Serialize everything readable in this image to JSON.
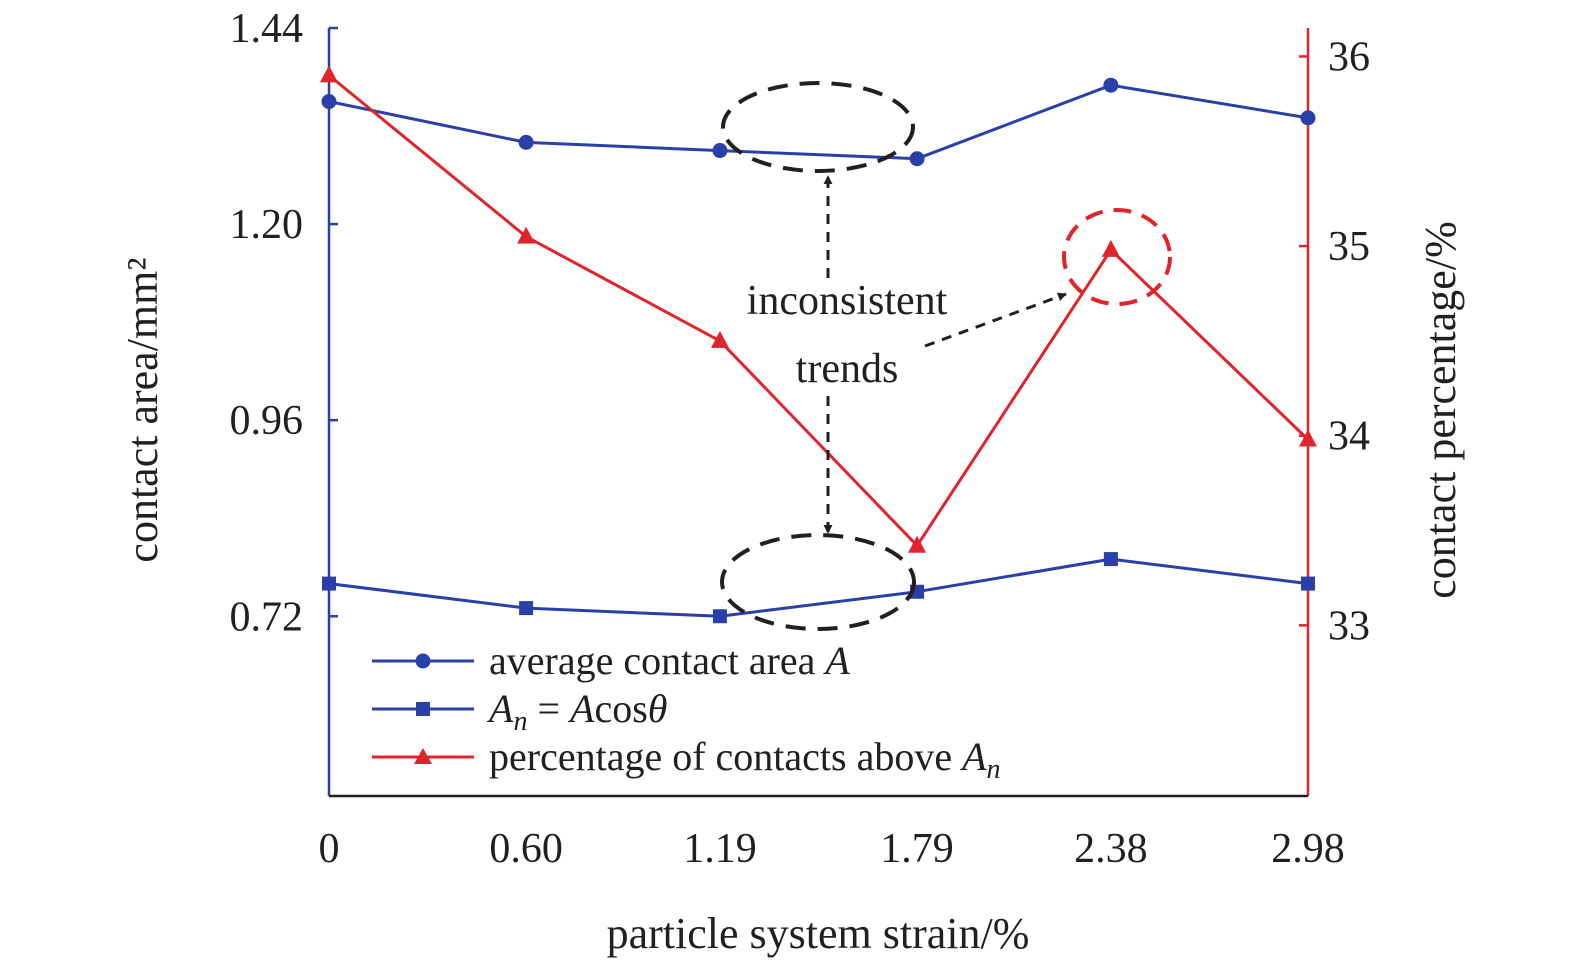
{
  "chart_data": {
    "type": "line",
    "x": [
      0,
      0.6,
      1.19,
      1.79,
      2.38,
      2.98
    ],
    "x_tick_labels": [
      "0",
      "0.60",
      "1.19",
      "1.79",
      "2.38",
      "2.98"
    ],
    "xlabel": "particle system strain/%",
    "ylabel_left": "contact area/mm²",
    "ylabel_right": "contact percentage/%",
    "ylim_left": [
      0.5,
      1.44
    ],
    "yticks_left": [
      "1.44",
      "1.20",
      "0.96",
      "0.72"
    ],
    "yticks_left_values": [
      1.44,
      1.2,
      0.96,
      0.72
    ],
    "ylim_right": [
      32.1,
      36.15
    ],
    "yticks_right": [
      "36",
      "35",
      "34",
      "33"
    ],
    "yticks_right_values": [
      36,
      35,
      34,
      33
    ],
    "grid": false,
    "legend_position": "lower-left",
    "series": [
      {
        "name": "average contact area A",
        "legend_plain": "average contact area ",
        "legend_italic": "A",
        "axis": "left",
        "marker": "circle",
        "color": "#2b3fa8",
        "values": [
          1.35,
          1.3,
          1.29,
          1.28,
          1.37,
          1.33
        ]
      },
      {
        "name": "An = Acosθ",
        "legend_parts": [
          "A",
          "n",
          " = ",
          "A",
          "cos",
          "θ"
        ],
        "axis": "left",
        "marker": "square",
        "color": "#2b3fa8",
        "values": [
          0.76,
          0.73,
          0.72,
          0.75,
          0.79,
          0.76
        ]
      },
      {
        "name": "percentage of contacts above An",
        "legend_plain": "percentage of contacts above ",
        "legend_italic": "A",
        "legend_sub": "n",
        "axis": "right",
        "marker": "triangle",
        "color": "#e0242b",
        "values": [
          35.9,
          35.05,
          34.5,
          33.42,
          34.98,
          33.98
        ]
      }
    ],
    "annotations": {
      "text_line1": "inconsistent",
      "text_line2": "trends"
    }
  },
  "colors": {
    "left_axis": "#2b3fa8",
    "right_axis": "#e0242b",
    "blue": "#2b3fa8",
    "red": "#e0242b",
    "annotation_black": "#231f20",
    "annotation_red": "#e0242b"
  }
}
